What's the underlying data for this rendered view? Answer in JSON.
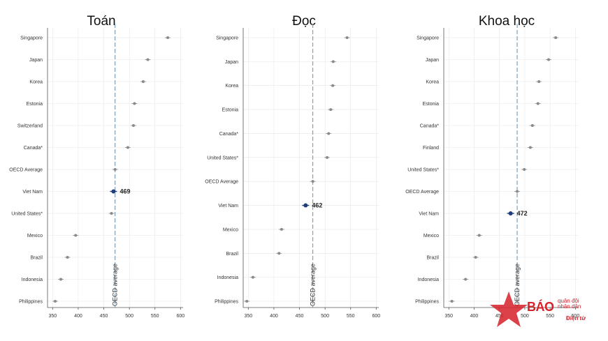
{
  "chart_data": [
    {
      "type": "scatter",
      "title": "Toán",
      "xlim": [
        340,
        605
      ],
      "xticks": [
        350,
        400,
        450,
        500,
        550,
        600
      ],
      "reference_line": {
        "value": 472,
        "label": "OECD average"
      },
      "highlight": {
        "category": "Viet Nam",
        "label": "469"
      },
      "grid": true,
      "categories": [
        "Singapore",
        "Japan",
        "Korea",
        "Estonia",
        "Switzerland",
        "Canada*",
        "OECD Average",
        "Viet Nam",
        "United States*",
        "Mexico",
        "Brazil",
        "Indonesia",
        "Philippines"
      ],
      "values": [
        575,
        536,
        527,
        510,
        508,
        497,
        472,
        469,
        465,
        395,
        379,
        366,
        355
      ]
    },
    {
      "type": "scatter",
      "title": "Đọc",
      "xlim": [
        340,
        605
      ],
      "xticks": [
        350,
        400,
        450,
        500,
        550,
        600
      ],
      "reference_line": {
        "value": 476,
        "label": "OECD average"
      },
      "highlight": {
        "category": "Viet Nam",
        "label": "462"
      },
      "grid": true,
      "categories": [
        "Singapore",
        "Japan",
        "Korea",
        "Estonia",
        "Canada*",
        "United States*",
        "OECD Average",
        "Viet Nam",
        "Mexico",
        "Brazil",
        "Indonesia",
        "Philippines"
      ],
      "values": [
        543,
        516,
        515,
        511,
        507,
        504,
        476,
        462,
        415,
        410,
        359,
        347
      ]
    },
    {
      "type": "scatter",
      "title": "Khoa học",
      "xlim": [
        340,
        605
      ],
      "xticks": [
        350,
        400,
        450,
        500,
        550,
        600
      ],
      "reference_line": {
        "value": 485,
        "label": "OECD average"
      },
      "highlight": {
        "category": "Viet Nam",
        "label": "472"
      },
      "grid": true,
      "categories": [
        "Singapore",
        "Japan",
        "Korea",
        "Estonia",
        "Canada*",
        "Finland",
        "United States*",
        "OECD Average",
        "Viet Nam",
        "Mexico",
        "Brazil",
        "Indonesia",
        "Philippines"
      ],
      "values": [
        561,
        547,
        528,
        526,
        515,
        511,
        499,
        485,
        472,
        410,
        403,
        383,
        356
      ]
    }
  ],
  "watermark": {
    "brand": "BÁO",
    "line1": "quân đội",
    "line2": "nhân dân",
    "sub": "Điện tử",
    "colors": {
      "red": "#d6202a",
      "gold": "#f2c230"
    }
  },
  "colors": {
    "point": "#8a8a8a",
    "highlight": "#1f3f7a",
    "reference": "#7f9fb8",
    "grid": "#e6e6e6",
    "axis": "#555555"
  }
}
